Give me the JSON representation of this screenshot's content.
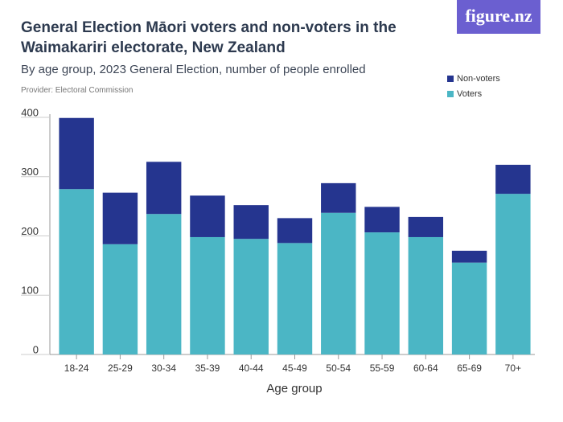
{
  "logo": "figure.nz",
  "chart_data": {
    "type": "stacked-bar",
    "title": "General Election Māori voters and non-voters in the Waimakariri electorate, New Zealand",
    "subtitle": "By age group, 2023 General Election, number of people enrolled",
    "provider": "Provider: Electoral Commission",
    "x_label": "Age group",
    "categories": [
      "18-24",
      "25-29",
      "30-34",
      "35-39",
      "40-44",
      "45-49",
      "50-54",
      "55-59",
      "60-64",
      "65-69",
      "70+"
    ],
    "series": [
      {
        "name": "Voters",
        "color": "#4bb6c5",
        "values": [
          279,
          186,
          237,
          198,
          195,
          188,
          239,
          206,
          198,
          155,
          271
        ]
      },
      {
        "name": "Non-voters",
        "color": "#25358f",
        "values": [
          120,
          87,
          88,
          70,
          57,
          42,
          50,
          43,
          34,
          20,
          49
        ]
      }
    ],
    "ylim": [
      0,
      400
    ],
    "yticks": [
      0,
      100,
      200,
      300,
      400
    ],
    "grid": false
  }
}
